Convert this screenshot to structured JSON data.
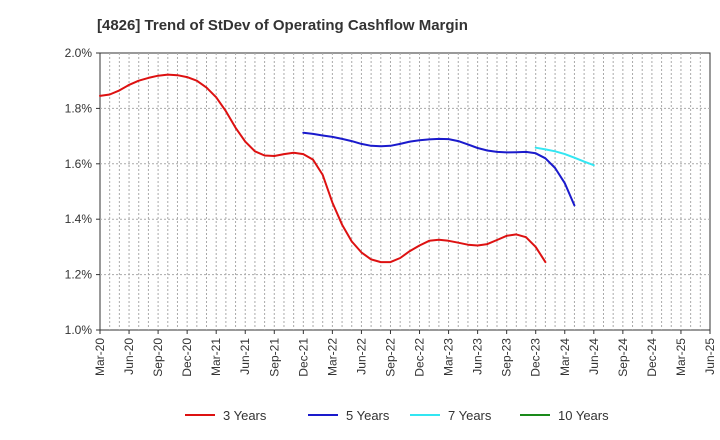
{
  "chart_data": {
    "type": "line",
    "title": "[4826]  Trend of StDev of Operating Cashflow Margin",
    "xlabel": "",
    "ylabel": "",
    "x_tick_labels": [
      "Mar-20",
      "Jun-20",
      "Sep-20",
      "Dec-20",
      "Mar-21",
      "Jun-21",
      "Sep-21",
      "Dec-21",
      "Mar-22",
      "Jun-22",
      "Sep-22",
      "Dec-22",
      "Mar-23",
      "Jun-23",
      "Sep-23",
      "Dec-23",
      "Mar-24",
      "Jun-24",
      "Sep-24",
      "Dec-24",
      "Mar-25",
      "Jun-25"
    ],
    "y_ticks": [
      1.0,
      1.2,
      1.4,
      1.6,
      1.8,
      2.0
    ],
    "y_tick_labels": [
      "1.0%",
      "1.2%",
      "1.4%",
      "1.6%",
      "1.8%",
      "2.0%"
    ],
    "ylim": [
      1.0,
      2.0
    ],
    "grid": true,
    "legend_position": "bottom",
    "series": [
      {
        "name": "3 Years",
        "color": "#dd1111",
        "x_start_month_index": 0,
        "values": [
          1.845,
          1.85,
          1.865,
          1.885,
          1.9,
          1.91,
          1.918,
          1.922,
          1.92,
          1.913,
          1.9,
          1.875,
          1.84,
          1.79,
          1.73,
          1.68,
          1.645,
          1.63,
          1.628,
          1.635,
          1.64,
          1.635,
          1.615,
          1.56,
          1.46,
          1.38,
          1.32,
          1.28,
          1.255,
          1.245,
          1.245,
          1.26,
          1.285,
          1.305,
          1.322,
          1.326,
          1.322,
          1.315,
          1.308,
          1.305,
          1.31,
          1.325,
          1.34,
          1.345,
          1.335,
          1.3,
          1.245
        ]
      },
      {
        "name": "5 Years",
        "color": "#1a1acc",
        "x_start_month_index": 21,
        "values": [
          1.712,
          1.708,
          1.702,
          1.697,
          1.69,
          1.682,
          1.672,
          1.665,
          1.663,
          1.665,
          1.672,
          1.68,
          1.685,
          1.688,
          1.69,
          1.689,
          1.682,
          1.67,
          1.657,
          1.648,
          1.643,
          1.641,
          1.642,
          1.643,
          1.638,
          1.62,
          1.585,
          1.53,
          1.45
        ]
      },
      {
        "name": "7 Years",
        "color": "#33e6f2",
        "x_start_month_index": 45,
        "values": [
          1.658,
          1.652,
          1.645,
          1.635,
          1.622,
          1.608,
          1.595
        ]
      },
      {
        "name": "10 Years",
        "color": "#1a8a1a",
        "x_start_month_index": 0,
        "values": []
      }
    ]
  }
}
